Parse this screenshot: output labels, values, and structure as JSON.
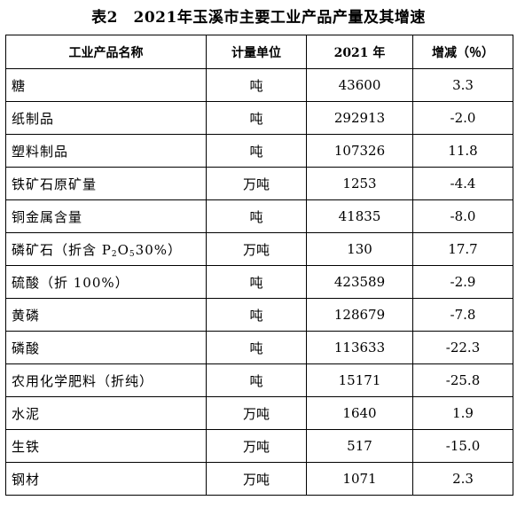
{
  "title": "表2　2021年玉溪市主要工业产品产量及其增速",
  "table": {
    "headers": [
      "工业产品名称",
      "计量单位",
      "2021 年",
      "增减（％）"
    ],
    "rows": [
      {
        "name": "糖",
        "unit": "吨",
        "value": "43600",
        "change": "3.3"
      },
      {
        "name": "纸制品",
        "unit": "吨",
        "value": "292913",
        "change": "-2.0"
      },
      {
        "name": "塑料制品",
        "unit": "吨",
        "value": "107326",
        "change": "11.8"
      },
      {
        "name": "铁矿石原矿量",
        "unit": "万吨",
        "value": "1253",
        "change": "-4.4"
      },
      {
        "name": "铜金属含量",
        "unit": "吨",
        "value": "41835",
        "change": "-8.0"
      },
      {
        "name_parts": [
          "磷矿石（折含 P",
          "2",
          "O",
          "5",
          "30%）"
        ],
        "unit": "万吨",
        "value": "130",
        "change": "17.7"
      },
      {
        "name": "硫酸（折 100%）",
        "unit": "吨",
        "value": "423589",
        "change": "-2.9"
      },
      {
        "name": "黄磷",
        "unit": "吨",
        "value": "128679",
        "change": "-7.8"
      },
      {
        "name": "磷酸",
        "unit": "吨",
        "value": "113633",
        "change": "-22.3"
      },
      {
        "name": "农用化学肥料（折纯）",
        "unit": "吨",
        "value": "15171",
        "change": "-25.8"
      },
      {
        "name": "水泥",
        "unit": "万吨",
        "value": "1640",
        "change": "1.9"
      },
      {
        "name": "生铁",
        "unit": "万吨",
        "value": "517",
        "change": "-15.0"
      },
      {
        "name": "钢材",
        "unit": "万吨",
        "value": "1071",
        "change": "2.3"
      }
    ]
  }
}
